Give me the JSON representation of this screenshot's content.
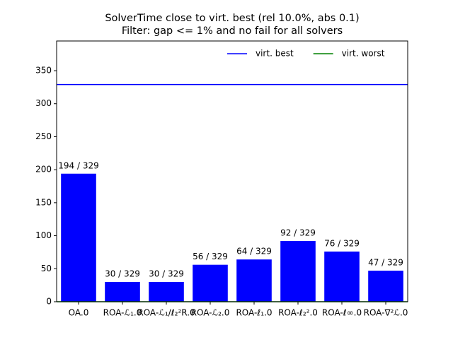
{
  "chart_data": {
    "type": "bar",
    "title": "SolverTime close to virt. best (rel 10.0%, abs 0.1)",
    "subtitle": "Filter: gap <= 1% and no fail for all solvers",
    "categories": [
      "OA.0",
      "ROA-ℒ₁.0",
      "ROA-ℒ₁/ℓ₂²R.0",
      "ROA-ℒ₂.0",
      "ROA-ℓ₁.0",
      "ROA-ℓ₂².0",
      "ROA-ℓ∞.0",
      "ROA-∇²ℒ.0"
    ],
    "values": [
      194,
      30,
      30,
      56,
      64,
      92,
      76,
      47
    ],
    "value_labels": [
      "194 / 329",
      "30 / 329",
      "30 / 329",
      "56 / 329",
      "64 / 329",
      "92 / 329",
      "76 / 329",
      "47 / 329"
    ],
    "color": "#0000ff",
    "reference_lines": [
      {
        "name": "virt. best",
        "value": 329,
        "color": "#0000ff"
      },
      {
        "name": "virt. worst",
        "value": 0,
        "color": "#008000"
      }
    ],
    "legend": "upper right",
    "ylim": [
      0,
      395
    ],
    "yticks": [
      0,
      50,
      100,
      150,
      200,
      250,
      300,
      350
    ],
    "grid": false
  }
}
